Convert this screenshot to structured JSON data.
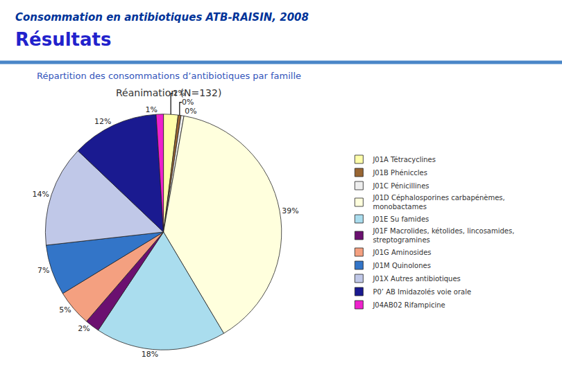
{
  "chart_data": {
    "type": "pie",
    "title": "Consommation en antibiotiques ATB-RAISIN, 2008",
    "subtitle": "Résultats",
    "annotations": [
      "Répartition des consommations d’antibiotiques par famille",
      "Réanimation (N=132)"
    ],
    "categories": [
      "J01A Tétracyclines",
      "J01B Phéniccles",
      "J01C Pénicillines",
      "J01D Céphalosporines carbapénèmes,\nmonobactames",
      "J01E Su famides",
      "J01F Macrolides, kétolides, lincosamides,\nstreptogramines",
      "J01G Aminosides",
      "J01M Quinolones",
      "J01X Autres antibiotiques",
      "P0’ AB Imidazolés voie orale",
      "J04AB02 Rifampicine"
    ],
    "values": [
      2,
      0.4,
      0.4,
      39,
      18,
      2,
      5,
      7,
      14,
      12,
      1
    ],
    "value_labels": [
      "2%",
      "0%",
      "0%",
      "39%",
      "18%",
      "2%",
      "5%",
      "7%",
      "14%",
      "12%",
      "1%"
    ],
    "colors": [
      "#FFFFAA",
      "#996633",
      "#EEEEEE",
      "#FFFFDD",
      "#AADDEE",
      "#6B1070",
      "#F4A080",
      "#3375C8",
      "#C0C8E8",
      "#1A1A90",
      "#EE22CC"
    ],
    "data_labels": true,
    "legend": "right"
  }
}
